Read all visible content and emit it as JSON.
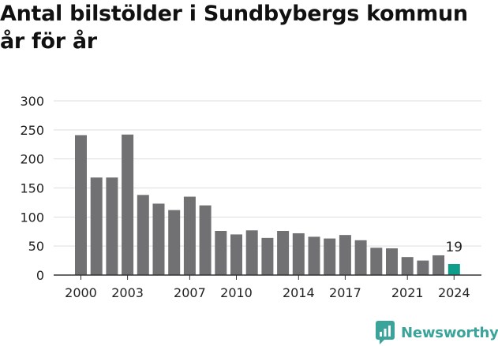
{
  "title": "Antal bilstölder i Sundbybergs kommun år för år",
  "brand": {
    "name": "Newsworthy",
    "icon": "newsworthy-logo-icon",
    "color": "#3aa39a"
  },
  "colors": {
    "bar": "#717073",
    "highlight": "#0f9d8c",
    "grid": "#dddddd",
    "axis": "#333333",
    "text": "#222222"
  },
  "chart_data": {
    "type": "bar",
    "title": "Antal bilstölder i Sundbybergs kommun år för år",
    "xlabel": "",
    "ylabel": "",
    "categories": [
      2000,
      2001,
      2002,
      2003,
      2004,
      2005,
      2006,
      2007,
      2008,
      2009,
      2010,
      2011,
      2012,
      2013,
      2014,
      2015,
      2016,
      2017,
      2018,
      2019,
      2020,
      2021,
      2022,
      2023,
      2024
    ],
    "values": [
      241,
      168,
      168,
      242,
      138,
      123,
      112,
      135,
      120,
      76,
      70,
      77,
      64,
      76,
      72,
      66,
      63,
      69,
      60,
      47,
      46,
      31,
      25,
      34,
      19
    ],
    "ylim": [
      0,
      300
    ],
    "yticks": [
      0,
      50,
      100,
      150,
      200,
      250,
      300
    ],
    "xtick_labels": [
      2000,
      2003,
      2007,
      2010,
      2014,
      2017,
      2021,
      2024
    ],
    "highlight": {
      "category": 2024,
      "label": "19"
    },
    "grid": true
  }
}
